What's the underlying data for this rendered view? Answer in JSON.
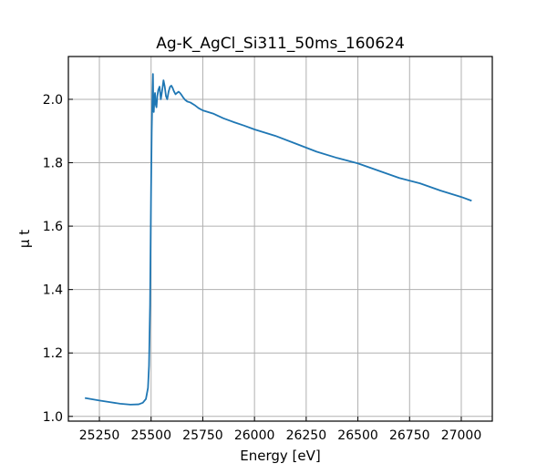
{
  "chart_data": {
    "type": "line",
    "title": "Ag-K_AgCl_Si311_50ms_160624",
    "xlabel": "Energy [eV]",
    "ylabel": "μ t",
    "xlim": [
      25100,
      27150
    ],
    "ylim": [
      0.985,
      2.135
    ],
    "xticks": [
      25250,
      25500,
      25750,
      26000,
      26250,
      26500,
      26750,
      27000
    ],
    "yticks": [
      1.0,
      1.2,
      1.4,
      1.6,
      1.8,
      2.0
    ],
    "grid": true,
    "tick_direction": "in",
    "colors": {
      "series": "#1f77b4",
      "grid": "#b0b0b0"
    },
    "series": [
      {
        "color": "#1f77b4",
        "x": [
          25180,
          25250,
          25300,
          25350,
          25400,
          25440,
          25460,
          25475,
          25485,
          25490,
          25495,
          25500,
          25503,
          25506,
          25509,
          25511,
          25513,
          25516,
          25519,
          25522,
          25526,
          25530,
          25535,
          25541,
          25547,
          25553,
          25560,
          25566,
          25572,
          25578,
          25585,
          25592,
          25598,
          25604,
          25610,
          25618,
          25625,
          25633,
          25640,
          25648,
          25656,
          25665,
          25675,
          25690,
          25710,
          25730,
          25750,
          25800,
          25850,
          25900,
          25950,
          26000,
          26100,
          26200,
          26300,
          26400,
          26500,
          26600,
          26700,
          26800,
          26900,
          27000,
          27050
        ],
        "y": [
          1.058,
          1.05,
          1.045,
          1.04,
          1.037,
          1.038,
          1.043,
          1.055,
          1.09,
          1.16,
          1.35,
          1.72,
          1.9,
          2.0,
          2.08,
          1.97,
          1.96,
          2.0,
          2.02,
          1.985,
          1.975,
          2.01,
          2.03,
          2.04,
          2.0,
          2.025,
          2.06,
          2.04,
          2.01,
          2.0,
          2.025,
          2.04,
          2.043,
          2.036,
          2.026,
          2.016,
          2.02,
          2.024,
          2.02,
          2.013,
          2.005,
          1.998,
          1.993,
          1.99,
          1.982,
          1.972,
          1.965,
          1.955,
          1.94,
          1.928,
          1.917,
          1.905,
          1.885,
          1.86,
          1.835,
          1.815,
          1.798,
          1.775,
          1.752,
          1.735,
          1.712,
          1.692,
          1.68
        ]
      }
    ]
  }
}
